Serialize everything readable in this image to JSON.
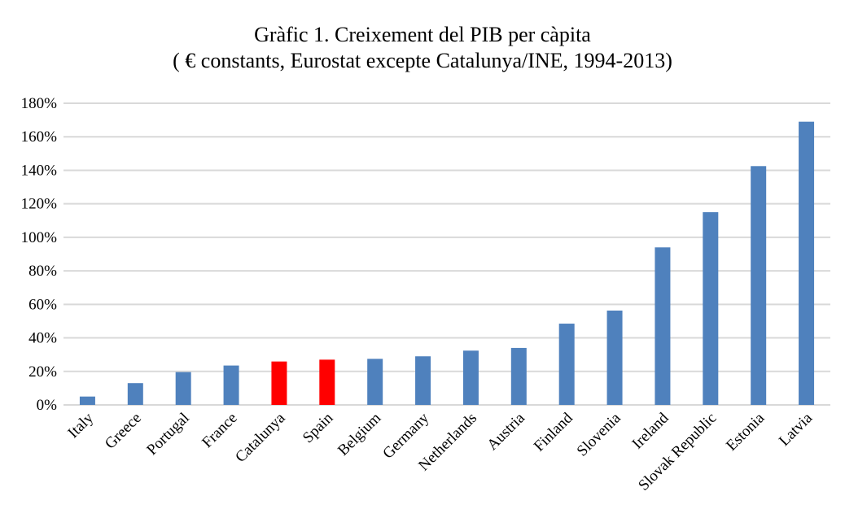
{
  "chart_data": {
    "type": "bar",
    "title": "Gràfic 1. Creixement del PIB per càpita",
    "subtitle": "( € constants, Eurostat excepte Catalunya/INE, 1994-2013)",
    "xlabel": "",
    "ylabel": "",
    "ylim": [
      0,
      180
    ],
    "yticks": [
      "0%",
      "20%",
      "40%",
      "60%",
      "80%",
      "100%",
      "120%",
      "140%",
      "160%",
      "180%"
    ],
    "grid": true,
    "categories": [
      "Italy",
      "Greece",
      "Portugal",
      "France",
      "Catalunya",
      "Spain",
      "Belgium",
      "Germany",
      "Netherlands",
      "Austria",
      "Finland",
      "Slovenia",
      "Ireland",
      "Slovak Republic",
      "Estonia",
      "Latvia"
    ],
    "values": [
      5,
      13,
      19.6,
      23.5,
      25.9,
      27,
      27.5,
      29,
      32.4,
      34,
      48.5,
      56.3,
      94,
      115,
      142.5,
      169
    ],
    "colors": {
      "default": "#4f81bd",
      "highlight": "#ff0000"
    },
    "highlighted": [
      "Catalunya",
      "Spain"
    ]
  }
}
